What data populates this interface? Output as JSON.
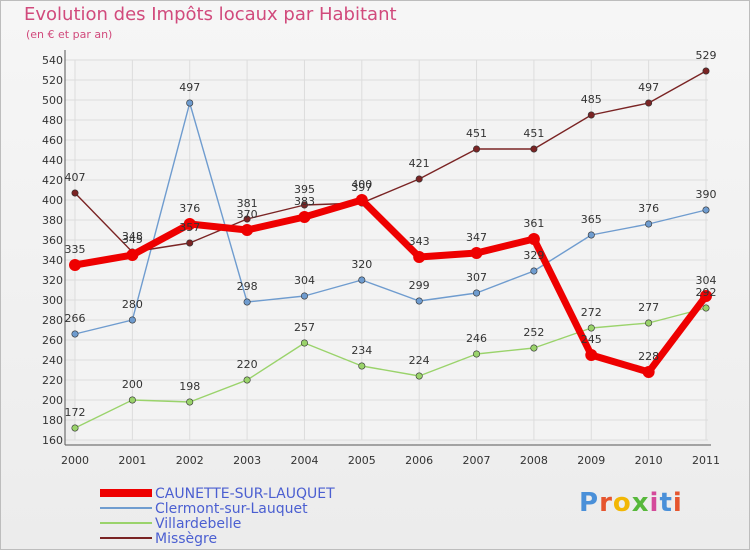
{
  "title": "Evolution des Impôts locaux par Habitant",
  "subtitle": "(en € et par an)",
  "logo_text": "Proxiti",
  "logo_colors": [
    "#4a90d9",
    "#e6552e",
    "#f2b705",
    "#57b83b",
    "#d44a9a",
    "#4a90d9",
    "#e6552e"
  ],
  "chart_data": {
    "type": "line",
    "x": [
      "2000",
      "2001",
      "2002",
      "2003",
      "2004",
      "2005",
      "2006",
      "2007",
      "2008",
      "2009",
      "2010",
      "2011"
    ],
    "ylim": [
      160,
      540
    ],
    "yticks": [
      160,
      180,
      200,
      220,
      240,
      260,
      280,
      300,
      320,
      340,
      360,
      380,
      400,
      420,
      440,
      460,
      480,
      500,
      520,
      540
    ],
    "grid": true,
    "legend_position": "bottom-left",
    "series": [
      {
        "name": "CAUNETTE-SUR-LAUQUET",
        "color": "#ee0000",
        "bold": true,
        "values": [
          335,
          345,
          376,
          370,
          383,
          400,
          343,
          347,
          361,
          245,
          228,
          304
        ]
      },
      {
        "name": "Clermont-sur-Lauquet",
        "color": "#6f9ccf",
        "bold": false,
        "values": [
          266,
          280,
          497,
          298,
          304,
          320,
          299,
          307,
          329,
          365,
          376,
          390
        ]
      },
      {
        "name": "Villardebelle",
        "color": "#9ad36b",
        "bold": false,
        "values": [
          172,
          200,
          198,
          220,
          257,
          234,
          224,
          246,
          252,
          272,
          277,
          292
        ]
      },
      {
        "name": "Missègre",
        "color": "#7a2424",
        "bold": false,
        "values": [
          407,
          348,
          357,
          381,
          395,
          397,
          421,
          451,
          451,
          485,
          497,
          529
        ]
      }
    ]
  }
}
